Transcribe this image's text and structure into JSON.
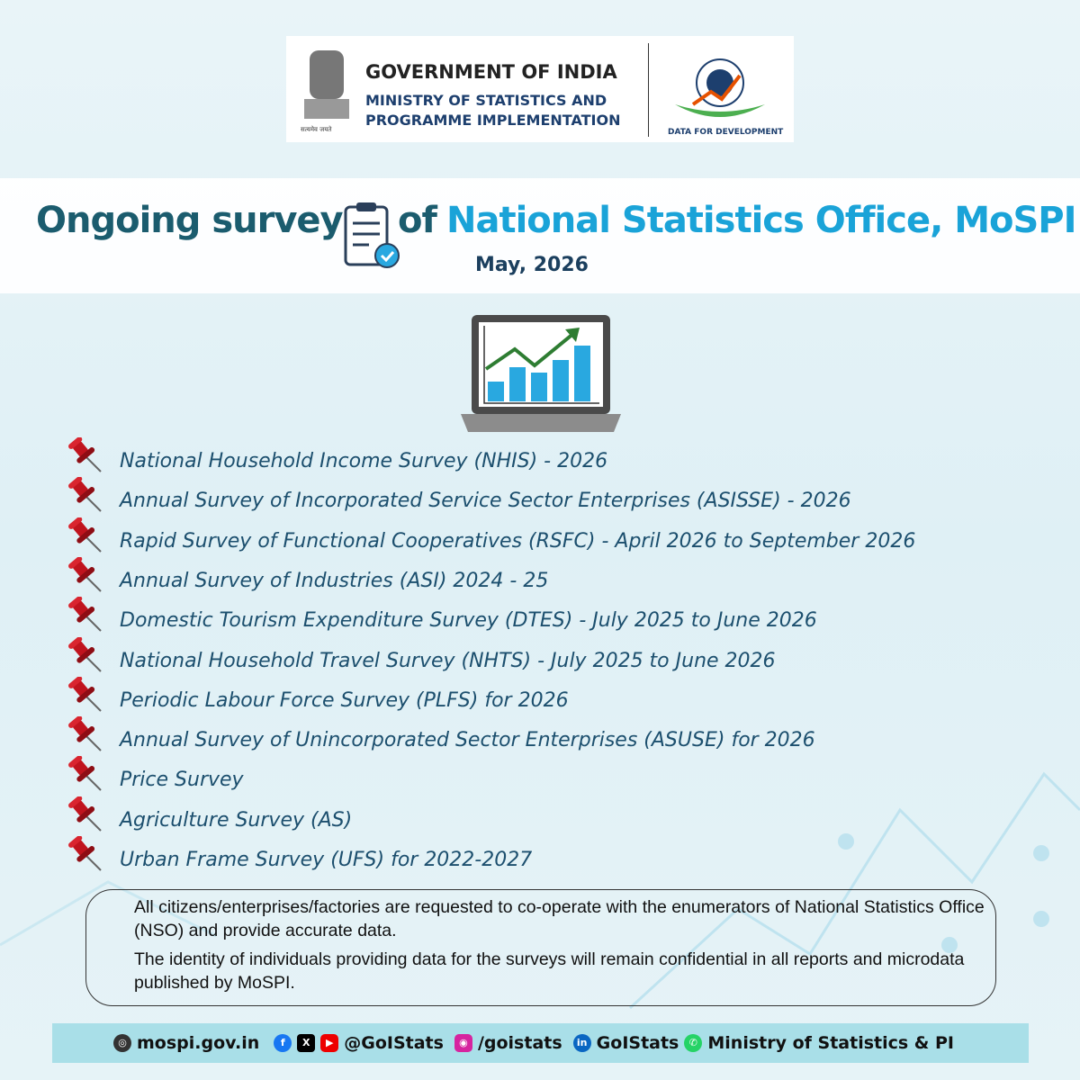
{
  "header": {
    "emblem_motto": "सत्यमेव जयते",
    "line1": "GOVERNMENT OF INDIA",
    "line2": "MINISTRY OF STATISTICS AND",
    "line3": "PROGRAMME IMPLEMENTATION",
    "logo_tagline": "DATA FOR DEVELOPMENT"
  },
  "title": {
    "part1": "Ongoing surveys",
    "part2": "of",
    "part3": "National Statistics Office, MoSPI",
    "date": "May, 2026"
  },
  "surveys": [
    "National Household Income Survey (NHIS) - 2026",
    "Annual Survey of Incorporated Service Sector Enterprises (ASISSE) - 2026",
    "Rapid Survey of Functional Cooperatives (RSFC) - April 2026 to  September 2026",
    "Annual Survey of Industries (ASI) 2024 - 25",
    "Domestic Tourism Expenditure Survey (DTES) - July 2025 to June 2026",
    "National Household Travel Survey (NHTS) - July 2025 to June 2026",
    "Periodic Labour Force Survey (PLFS) for 2026",
    "Annual Survey of Unincorporated Sector Enterprises (ASUSE) for 2026",
    "Price Survey",
    "Agriculture Survey (AS)",
    "Urban Frame Survey (UFS) for 2022-2027"
  ],
  "notice": [
    "All citizens/enterprises/factories are requested to co-operate with the enumerators of National Statistics Office (NSO) and provide accurate data.",
    "The identity of individuals providing data for the surveys will remain confidential in all reports and microdata published by MoSPI."
  ],
  "footer": {
    "website": "mospi.gov.in",
    "handle": "@GoIStats",
    "instagram": "/goistats",
    "linkedin": "GoIStats",
    "whatsapp": "Ministry of Statistics & PI"
  }
}
